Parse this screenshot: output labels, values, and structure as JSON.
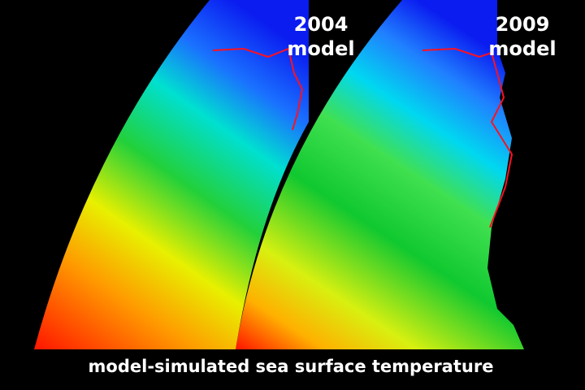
{
  "panels": [
    {
      "year": "2004",
      "label": "model"
    },
    {
      "year": "2009",
      "label": "model"
    }
  ],
  "caption": "model-simulated sea surface temperature"
}
